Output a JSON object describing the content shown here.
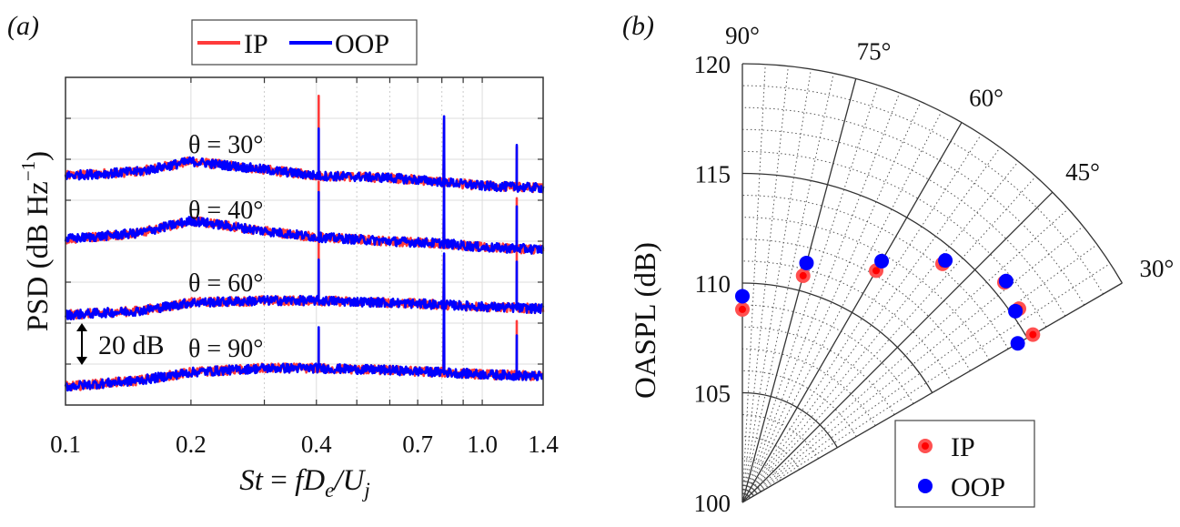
{
  "panel_a": {
    "label": "(a)"
  },
  "panel_b": {
    "label": "(b)"
  },
  "chart_data": [
    {
      "type": "line",
      "panel": "(a)",
      "xscale": "log",
      "xlim": [
        0.1,
        1.4
      ],
      "xticks": [
        0.1,
        0.2,
        0.4,
        0.7,
        1.0,
        1.4
      ],
      "xtick_labels": [
        "0.1",
        "0.2",
        "0.4",
        "0.7",
        "1.0",
        "1.4"
      ],
      "xlabel_parts": {
        "St": "St",
        "eq": " = ",
        "fD": "fD",
        "e": "e",
        "slashU": "/U",
        "j": "j"
      },
      "ylabel_parts": {
        "main": "PSD (dB Hz",
        "sup": "−1",
        "close": ")"
      },
      "ylim": [
        0,
        160
      ],
      "ygrid_step": 20,
      "grid": true,
      "legend": {
        "placement": "top-outside",
        "entries": [
          "IP",
          "OOP"
        ]
      },
      "scale_bar": "20 dB",
      "colors": {
        "IP": "#ff3b3b",
        "OOP": "#0000ff"
      },
      "curves": [
        {
          "label": "θ = 30°",
          "baseline": {
            "x": [
              0.1,
              0.15,
              0.2,
              0.3,
              0.4,
              0.6,
              0.8,
              1.0,
              1.4
            ],
            "y": [
              112,
              114,
              119,
              115,
              112,
              111,
              109,
              107,
              106
            ]
          },
          "peaks_IP": [
            [
              0.405,
              151
            ],
            [
              0.81,
              139
            ],
            [
              1.21,
              126
            ]
          ],
          "peaks_OOP": [
            [
              0.405,
              135
            ],
            [
              0.81,
              141
            ],
            [
              1.21,
              127
            ]
          ]
        },
        {
          "label": "θ = 40°",
          "baseline": {
            "x": [
              0.1,
              0.15,
              0.2,
              0.3,
              0.4,
              0.6,
              0.8,
              1.0,
              1.4
            ],
            "y": [
              81,
              84,
              90,
              85,
              82,
              80,
              79,
              77,
              76
            ]
          },
          "peaks_IP": [
            [
              0.405,
              109
            ],
            [
              0.81,
              110
            ],
            [
              1.21,
              101
            ]
          ],
          "peaks_OOP": [
            [
              0.405,
              104
            ],
            [
              0.81,
              111
            ],
            [
              1.21,
              97
            ]
          ]
        },
        {
          "label": "θ = 60°",
          "baseline": {
            "x": [
              0.1,
              0.15,
              0.2,
              0.3,
              0.4,
              0.6,
              0.8,
              1.0,
              1.4
            ],
            "y": [
              44,
              46,
              50,
              51,
              51,
              50,
              49,
              48,
              47
            ]
          },
          "peaks_IP": [
            [
              0.405,
              81
            ],
            [
              0.81,
              73
            ],
            [
              1.21,
              74
            ]
          ],
          "peaks_OOP": [
            [
              0.405,
              71
            ],
            [
              0.81,
              74
            ],
            [
              1.21,
              70
            ]
          ]
        },
        {
          "label": "θ = 90°",
          "baseline": {
            "x": [
              0.1,
              0.15,
              0.2,
              0.3,
              0.4,
              0.6,
              0.8,
              1.0,
              1.4
            ],
            "y": [
              9,
              12,
              16,
              18,
              18,
              17,
              16,
              15,
              14
            ]
          },
          "peaks_IP": [
            [
              0.405,
              37
            ],
            [
              0.81,
              68
            ],
            [
              1.21,
              41
            ]
          ],
          "peaks_OOP": [
            [
              0.405,
              38
            ],
            [
              0.81,
              69
            ],
            [
              1.21,
              34
            ]
          ]
        }
      ]
    },
    {
      "type": "scatter",
      "panel": "(b)",
      "coordinate_system": "polar",
      "theta_range_deg": [
        30,
        90
      ],
      "theta_ticks_deg": [
        30,
        45,
        60,
        75,
        90
      ],
      "theta_tick_labels": [
        "30°",
        "45°",
        "60°",
        "75°",
        "90°"
      ],
      "rlim": [
        100,
        120
      ],
      "r_ticks": [
        100,
        105,
        110,
        115,
        120
      ],
      "r_tick_labels": [
        "100",
        "105",
        "110",
        "115",
        "120"
      ],
      "ylabel": "OASPL (dB)",
      "grid": true,
      "legend": {
        "placement": "bottom-right",
        "entries": [
          "IP",
          "OOP"
        ]
      },
      "colors": {
        "IP": "#ff3b3b",
        "OOP": "#0000ff"
      },
      "theta_deg": [
        90,
        75,
        60,
        50,
        40,
        35,
        30
      ],
      "series": [
        {
          "name": "IP",
          "values": [
            108.8,
            110.7,
            112.2,
            114.2,
            115.6,
            115.4,
            115.3
          ]
        },
        {
          "name": "OOP",
          "values": [
            109.4,
            111.3,
            112.7,
            114.4,
            115.7,
            115.2,
            114.5
          ]
        }
      ]
    }
  ]
}
